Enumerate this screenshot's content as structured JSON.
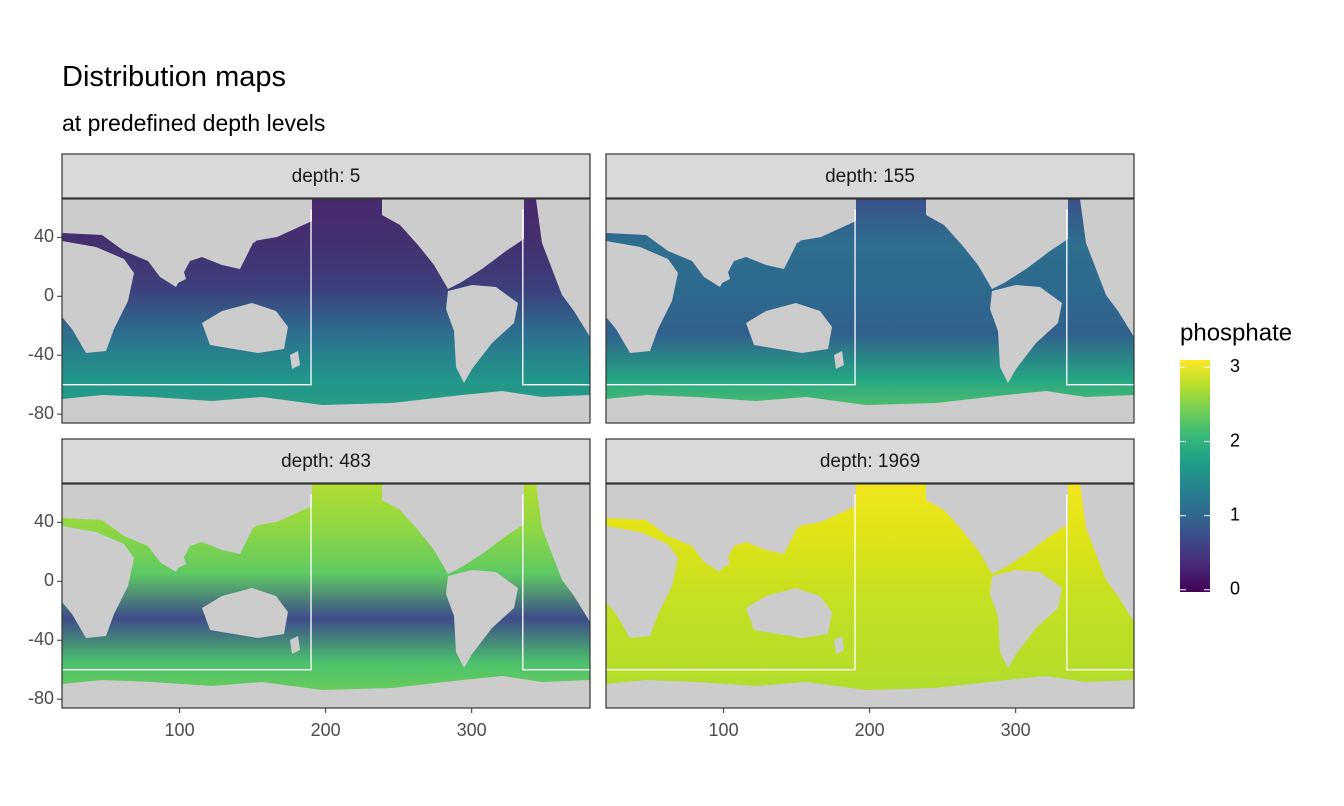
{
  "chart_data": {
    "type": "facet-map",
    "title": "Distribution maps",
    "subtitle": "at predefined depth levels",
    "facets": [
      {
        "label": "depth: 5",
        "colors": [
          "#472a6e",
          "#44306f",
          "#3d3f7c",
          "#2d6f8e",
          "#22958a",
          "#2ba183"
        ]
      },
      {
        "label": "depth: 155",
        "colors": [
          "#3b528b",
          "#2e6e8e",
          "#2e6a8e",
          "#31608d",
          "#25a584",
          "#62cb5f"
        ]
      },
      {
        "label": "depth: 483",
        "colors": [
          "#b0dd2f",
          "#8fd744",
          "#5ec962",
          "#3e4c8a",
          "#4cc26c",
          "#7ad151"
        ]
      },
      {
        "label": "depth: 1969",
        "colors": [
          "#f1e51d",
          "#e2e418",
          "#cfe11c",
          "#c0df25",
          "#b8de29",
          "#aadc32"
        ]
      }
    ],
    "outlines": [
      {
        "x": [
          190,
          190,
          20
        ],
        "y": [
          59,
          -60,
          -60
        ]
      },
      {
        "x": [
          335,
          335,
          381
        ],
        "y": [
          59,
          -60,
          -60
        ]
      }
    ],
    "xlim": [
      19.5,
      381
    ],
    "ylim": [
      -86,
      66
    ],
    "xticks": [
      100,
      200,
      300
    ],
    "yticks": [
      40,
      0,
      -40,
      -80
    ],
    "legend": {
      "title": "phosphate",
      "lim": [
        -0.03,
        3.1
      ],
      "ticks": [
        0,
        1,
        2,
        3
      ],
      "colors": [
        "#440154",
        "#482878",
        "#3e4989",
        "#31688e",
        "#26828e",
        "#1f9e89",
        "#35b779",
        "#6ece58",
        "#b5de2b",
        "#fde725"
      ]
    }
  }
}
